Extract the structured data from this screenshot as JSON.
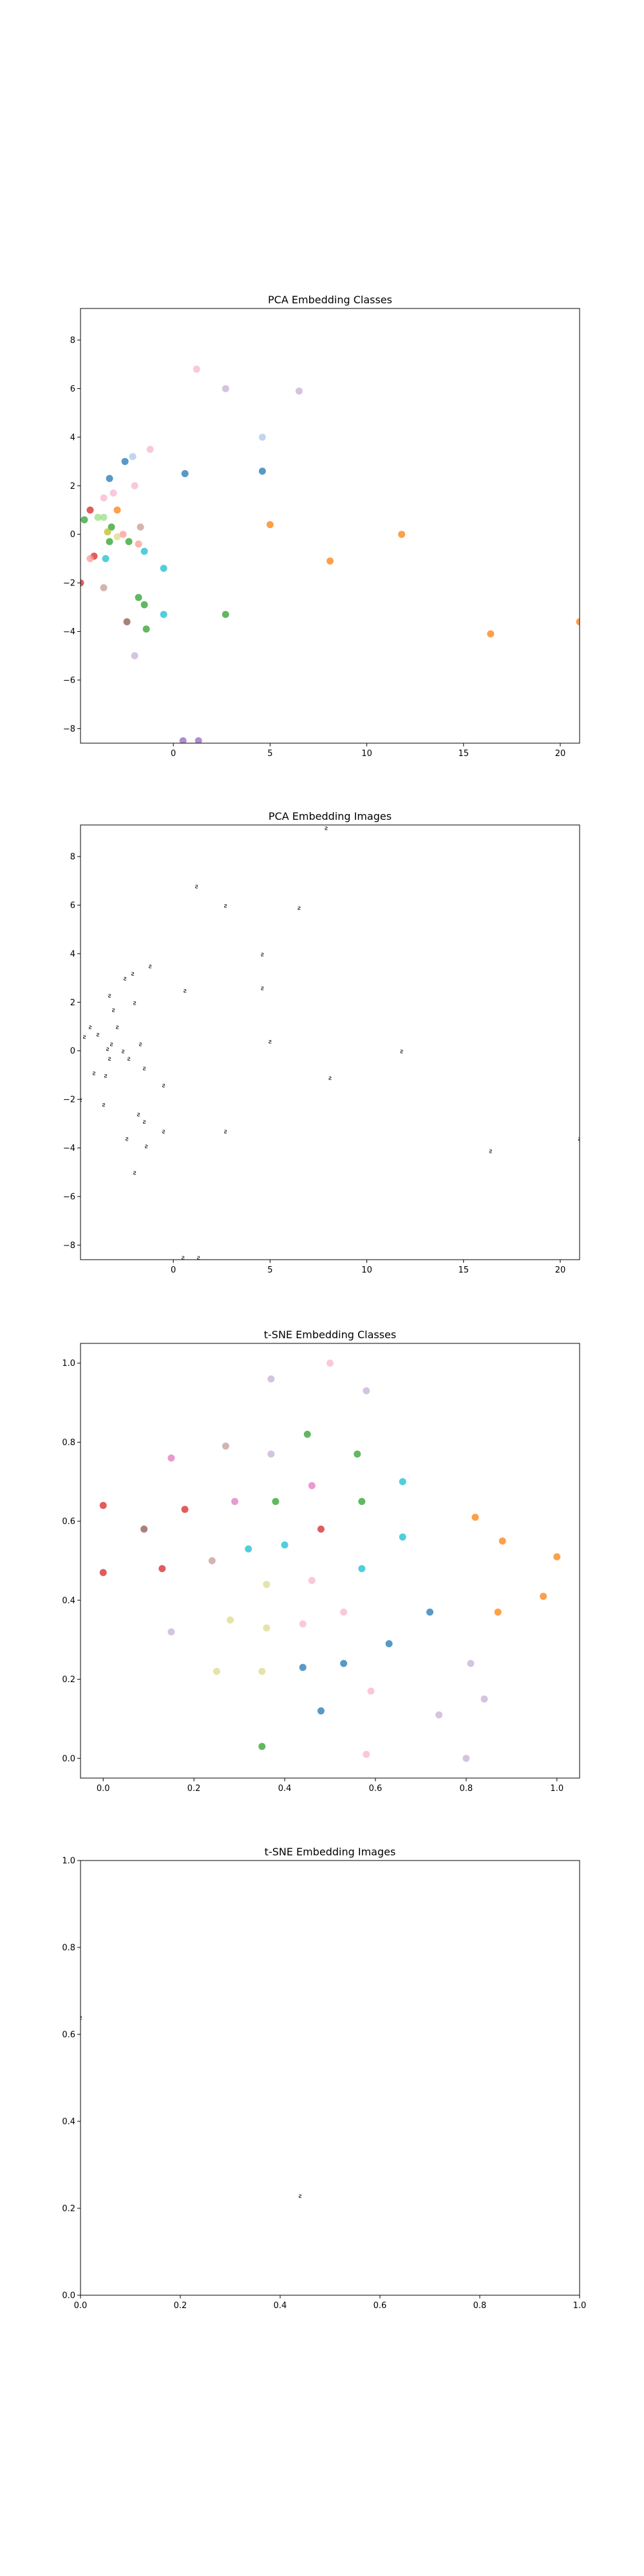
{
  "chart_data": [
    {
      "type": "scatter",
      "title": "PCA Embedding Classes",
      "xlabel": "",
      "ylabel": "",
      "xlim": [
        -4.8,
        21
      ],
      "ylim": [
        -8.6,
        9.3
      ],
      "xticks": [
        0,
        5,
        10,
        15,
        20
      ],
      "yticks": [
        -8,
        -6,
        -4,
        -2,
        0,
        2,
        4,
        6,
        8
      ],
      "grid": false,
      "points": [
        {
          "x": 1.2,
          "y": 6.8,
          "color": "#f7b6d2"
        },
        {
          "x": 2.7,
          "y": 6.0,
          "color": "#c5b0d5"
        },
        {
          "x": 6.5,
          "y": 5.9,
          "color": "#c5b0d5"
        },
        {
          "x": 4.6,
          "y": 4.0,
          "color": "#aec7e8"
        },
        {
          "x": -1.2,
          "y": 3.5,
          "color": "#f7b6d2"
        },
        {
          "x": -2.1,
          "y": 3.2,
          "color": "#aec7e8"
        },
        {
          "x": -2.5,
          "y": 3.0,
          "color": "#1f77b4"
        },
        {
          "x": 4.6,
          "y": 2.6,
          "color": "#1f77b4"
        },
        {
          "x": 0.6,
          "y": 2.5,
          "color": "#1f77b4"
        },
        {
          "x": -3.3,
          "y": 2.3,
          "color": "#1f77b4"
        },
        {
          "x": -2.0,
          "y": 2.0,
          "color": "#f7b6d2"
        },
        {
          "x": -3.1,
          "y": 1.7,
          "color": "#f7b6d2"
        },
        {
          "x": -3.6,
          "y": 1.5,
          "color": "#f7b6d2"
        },
        {
          "x": -4.3,
          "y": 1.0,
          "color": "#d62728"
        },
        {
          "x": -2.9,
          "y": 1.0,
          "color": "#ff7f0e"
        },
        {
          "x": -3.9,
          "y": 0.7,
          "color": "#98df8a"
        },
        {
          "x": -3.6,
          "y": 0.7,
          "color": "#98df8a"
        },
        {
          "x": -4.6,
          "y": 0.6,
          "color": "#2ca02c"
        },
        {
          "x": 5.0,
          "y": 0.4,
          "color": "#ff7f0e"
        },
        {
          "x": -1.7,
          "y": 0.3,
          "color": "#c49c94"
        },
        {
          "x": -3.2,
          "y": 0.3,
          "color": "#2ca02c"
        },
        {
          "x": -3.4,
          "y": 0.1,
          "color": "#bcbd22"
        },
        {
          "x": -2.6,
          "y": 0.0,
          "color": "#ff9896"
        },
        {
          "x": 11.8,
          "y": 0.0,
          "color": "#ff7f0e"
        },
        {
          "x": -2.9,
          "y": -0.1,
          "color": "#dbdb8d"
        },
        {
          "x": -3.3,
          "y": -0.3,
          "color": "#2ca02c"
        },
        {
          "x": -2.3,
          "y": -0.3,
          "color": "#2ca02c"
        },
        {
          "x": -1.8,
          "y": -0.4,
          "color": "#ff9896"
        },
        {
          "x": -1.5,
          "y": -0.7,
          "color": "#17becf"
        },
        {
          "x": -4.1,
          "y": -0.9,
          "color": "#d62728"
        },
        {
          "x": -4.3,
          "y": -1.0,
          "color": "#ff9896"
        },
        {
          "x": -3.5,
          "y": -1.0,
          "color": "#17becf"
        },
        {
          "x": 8.1,
          "y": -1.1,
          "color": "#ff7f0e"
        },
        {
          "x": -0.5,
          "y": -1.4,
          "color": "#17becf"
        },
        {
          "x": -4.8,
          "y": -2.0,
          "color": "#d62728"
        },
        {
          "x": -3.6,
          "y": -2.2,
          "color": "#c49c94"
        },
        {
          "x": -1.8,
          "y": -2.6,
          "color": "#2ca02c"
        },
        {
          "x": -1.5,
          "y": -2.9,
          "color": "#2ca02c"
        },
        {
          "x": -0.5,
          "y": -3.3,
          "color": "#17becf"
        },
        {
          "x": 2.7,
          "y": -3.3,
          "color": "#2ca02c"
        },
        {
          "x": 21.0,
          "y": -3.6,
          "color": "#ff7f0e"
        },
        {
          "x": -2.4,
          "y": -3.6,
          "color": "#8c564b"
        },
        {
          "x": -1.4,
          "y": -3.9,
          "color": "#2ca02c"
        },
        {
          "x": 16.4,
          "y": -4.1,
          "color": "#ff7f0e"
        },
        {
          "x": -2.0,
          "y": -5.0,
          "color": "#c5b0d5"
        },
        {
          "x": 0.5,
          "y": -8.5,
          "color": "#9467bd"
        },
        {
          "x": 1.3,
          "y": -8.5,
          "color": "#9467bd"
        }
      ]
    },
    {
      "type": "scatter",
      "title": "PCA Embedding Images",
      "xlabel": "",
      "ylabel": "",
      "xlim": [
        -4.8,
        21
      ],
      "ylim": [
        -8.6,
        9.3
      ],
      "xticks": [
        0,
        5,
        10,
        15,
        20
      ],
      "yticks": [
        -8,
        -6,
        -4,
        -2,
        0,
        2,
        4,
        6,
        8
      ],
      "grid": false,
      "glyph": "ƨ",
      "points": [
        {
          "x": 7.9,
          "y": 9.2
        },
        {
          "x": 1.2,
          "y": 6.8
        },
        {
          "x": 2.7,
          "y": 6.0
        },
        {
          "x": 6.5,
          "y": 5.9
        },
        {
          "x": 4.6,
          "y": 4.0
        },
        {
          "x": -1.2,
          "y": 3.5
        },
        {
          "x": -2.1,
          "y": 3.2
        },
        {
          "x": -2.5,
          "y": 3.0
        },
        {
          "x": 4.6,
          "y": 2.6
        },
        {
          "x": 0.6,
          "y": 2.5
        },
        {
          "x": -3.3,
          "y": 2.3
        },
        {
          "x": -2.0,
          "y": 2.0
        },
        {
          "x": -3.1,
          "y": 1.7
        },
        {
          "x": -4.3,
          "y": 1.0
        },
        {
          "x": -2.9,
          "y": 1.0
        },
        {
          "x": -3.9,
          "y": 0.7
        },
        {
          "x": -4.6,
          "y": 0.6
        },
        {
          "x": 5.0,
          "y": 0.4
        },
        {
          "x": -1.7,
          "y": 0.3
        },
        {
          "x": -3.2,
          "y": 0.3
        },
        {
          "x": -3.4,
          "y": 0.1
        },
        {
          "x": -2.6,
          "y": 0.0
        },
        {
          "x": 11.8,
          "y": 0.0
        },
        {
          "x": -2.3,
          "y": -0.3
        },
        {
          "x": -3.3,
          "y": -0.3
        },
        {
          "x": -1.5,
          "y": -0.7
        },
        {
          "x": -4.1,
          "y": -0.9
        },
        {
          "x": -3.5,
          "y": -1.0
        },
        {
          "x": 8.1,
          "y": -1.1
        },
        {
          "x": -0.5,
          "y": -1.4
        },
        {
          "x": -4.8,
          "y": -2.0
        },
        {
          "x": -3.6,
          "y": -2.2
        },
        {
          "x": -1.8,
          "y": -2.6
        },
        {
          "x": -1.5,
          "y": -2.9
        },
        {
          "x": -0.5,
          "y": -3.3
        },
        {
          "x": 2.7,
          "y": -3.3
        },
        {
          "x": 21.0,
          "y": -3.6
        },
        {
          "x": -2.4,
          "y": -3.6
        },
        {
          "x": -1.4,
          "y": -3.9
        },
        {
          "x": 16.4,
          "y": -4.1
        },
        {
          "x": -2.0,
          "y": -5.0
        },
        {
          "x": 0.5,
          "y": -8.5
        },
        {
          "x": 1.3,
          "y": -8.5
        }
      ]
    },
    {
      "type": "scatter",
      "title": "t-SNE Embedding Classes",
      "xlabel": "",
      "ylabel": "",
      "xlim": [
        -0.05,
        1.05
      ],
      "ylim": [
        -0.05,
        1.05
      ],
      "xticks": [
        0.0,
        0.2,
        0.4,
        0.6,
        0.8,
        1.0
      ],
      "yticks": [
        0.0,
        0.2,
        0.4,
        0.6,
        0.8,
        1.0
      ],
      "grid": false,
      "points": [
        {
          "x": 0.5,
          "y": 1.0,
          "color": "#f7b6d2"
        },
        {
          "x": 0.37,
          "y": 0.96,
          "color": "#c5b0d5"
        },
        {
          "x": 0.58,
          "y": 0.93,
          "color": "#c5b0d5"
        },
        {
          "x": 0.45,
          "y": 0.82,
          "color": "#2ca02c"
        },
        {
          "x": 0.27,
          "y": 0.79,
          "color": "#c49c94"
        },
        {
          "x": 0.37,
          "y": 0.77,
          "color": "#c5b0d5"
        },
        {
          "x": 0.56,
          "y": 0.77,
          "color": "#2ca02c"
        },
        {
          "x": 0.15,
          "y": 0.76,
          "color": "#e377c2"
        },
        {
          "x": 0.66,
          "y": 0.7,
          "color": "#17becf"
        },
        {
          "x": 0.46,
          "y": 0.69,
          "color": "#e377c2"
        },
        {
          "x": 0.29,
          "y": 0.65,
          "color": "#e377c2"
        },
        {
          "x": 0.38,
          "y": 0.65,
          "color": "#2ca02c"
        },
        {
          "x": 0.57,
          "y": 0.65,
          "color": "#2ca02c"
        },
        {
          "x": 0.0,
          "y": 0.64,
          "color": "#d62728"
        },
        {
          "x": 0.18,
          "y": 0.63,
          "color": "#d62728"
        },
        {
          "x": 0.82,
          "y": 0.61,
          "color": "#ff7f0e"
        },
        {
          "x": 0.09,
          "y": 0.58,
          "color": "#8c564b"
        },
        {
          "x": 0.48,
          "y": 0.58,
          "color": "#d62728"
        },
        {
          "x": 0.66,
          "y": 0.56,
          "color": "#17becf"
        },
        {
          "x": 0.88,
          "y": 0.55,
          "color": "#ff7f0e"
        },
        {
          "x": 0.4,
          "y": 0.54,
          "color": "#17becf"
        },
        {
          "x": 0.32,
          "y": 0.53,
          "color": "#17becf"
        },
        {
          "x": 1.0,
          "y": 0.51,
          "color": "#ff7f0e"
        },
        {
          "x": 0.24,
          "y": 0.5,
          "color": "#c49c94"
        },
        {
          "x": 0.57,
          "y": 0.48,
          "color": "#17becf"
        },
        {
          "x": 0.13,
          "y": 0.48,
          "color": "#d62728"
        },
        {
          "x": 0.0,
          "y": 0.47,
          "color": "#d62728"
        },
        {
          "x": 0.46,
          "y": 0.45,
          "color": "#f7b6d2"
        },
        {
          "x": 0.36,
          "y": 0.44,
          "color": "#dbdb8d"
        },
        {
          "x": 0.97,
          "y": 0.41,
          "color": "#ff7f0e"
        },
        {
          "x": 0.53,
          "y": 0.37,
          "color": "#f7b6d2"
        },
        {
          "x": 0.72,
          "y": 0.37,
          "color": "#1f77b4"
        },
        {
          "x": 0.87,
          "y": 0.37,
          "color": "#ff7f0e"
        },
        {
          "x": 0.28,
          "y": 0.35,
          "color": "#dbdb8d"
        },
        {
          "x": 0.44,
          "y": 0.34,
          "color": "#f7b6d2"
        },
        {
          "x": 0.36,
          "y": 0.33,
          "color": "#dbdb8d"
        },
        {
          "x": 0.15,
          "y": 0.32,
          "color": "#c5b0d5"
        },
        {
          "x": 0.63,
          "y": 0.29,
          "color": "#1f77b4"
        },
        {
          "x": 0.53,
          "y": 0.24,
          "color": "#1f77b4"
        },
        {
          "x": 0.81,
          "y": 0.24,
          "color": "#c5b0d5"
        },
        {
          "x": 0.44,
          "y": 0.23,
          "color": "#1f77b4"
        },
        {
          "x": 0.25,
          "y": 0.22,
          "color": "#dbdb8d"
        },
        {
          "x": 0.35,
          "y": 0.22,
          "color": "#dbdb8d"
        },
        {
          "x": 0.59,
          "y": 0.17,
          "color": "#f7b6d2"
        },
        {
          "x": 0.84,
          "y": 0.15,
          "color": "#c5b0d5"
        },
        {
          "x": 0.48,
          "y": 0.12,
          "color": "#1f77b4"
        },
        {
          "x": 0.74,
          "y": 0.11,
          "color": "#c5b0d5"
        },
        {
          "x": 0.35,
          "y": 0.03,
          "color": "#2ca02c"
        },
        {
          "x": 0.58,
          "y": 0.01,
          "color": "#f7b6d2"
        },
        {
          "x": 0.8,
          "y": 0.0,
          "color": "#c5b0d5"
        }
      ]
    },
    {
      "type": "scatter",
      "title": "t-SNE Embedding Images",
      "xlabel": "",
      "ylabel": "",
      "xlim": [
        0,
        1
      ],
      "ylim": [
        0,
        1
      ],
      "xticks": [
        0.0,
        0.2,
        0.4,
        0.6,
        0.8,
        1.0
      ],
      "yticks": [
        0.0,
        0.2,
        0.4,
        0.6,
        0.8,
        1.0
      ],
      "grid": false,
      "glyph": "ƨ",
      "points": [
        {
          "x": 0.0,
          "y": 0.64
        },
        {
          "x": 0.44,
          "y": 0.23
        }
      ]
    }
  ]
}
